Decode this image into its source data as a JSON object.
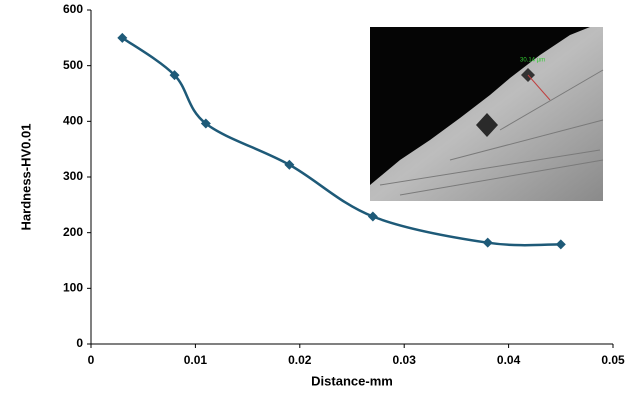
{
  "chart_data": {
    "type": "line",
    "x_label": "Distance-mm",
    "y_label": "Hardness-HV0.01",
    "x": [
      0.003,
      0.008,
      0.011,
      0.019,
      0.027,
      0.038,
      0.045
    ],
    "series": [
      {
        "color": "#1e5a78",
        "values": [
          550,
          483,
          396,
          322,
          229,
          182,
          179
        ]
      }
    ],
    "xlim": [
      0,
      0.05
    ],
    "xticks": [
      0,
      0.01,
      0.02,
      0.03,
      0.04,
      0.05
    ],
    "ylim": [
      0,
      600
    ],
    "yticks": [
      0,
      100,
      200,
      300,
      400,
      500,
      600
    ],
    "smooth": true,
    "inset_annotation": "30.14 µm"
  }
}
